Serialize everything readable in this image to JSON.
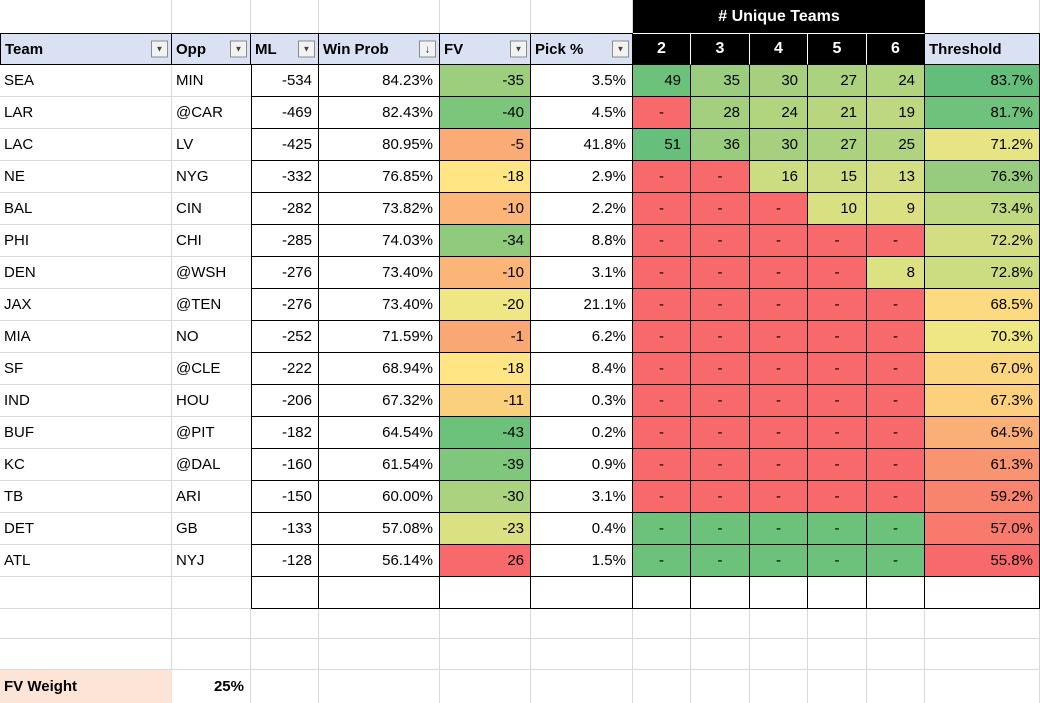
{
  "header": {
    "unique_teams_label": "# Unique Teams",
    "columns": [
      {
        "label": "Team",
        "icon": "filter-icon"
      },
      {
        "label": "Opp",
        "icon": "filter-icon"
      },
      {
        "label": "ML",
        "icon": "filter-icon"
      },
      {
        "label": "Win Prob",
        "icon": "filter-sort-desc-icon"
      },
      {
        "label": "FV",
        "icon": "filter-icon"
      },
      {
        "label": "Pick %",
        "icon": "filter-icon"
      }
    ],
    "unique_columns": [
      "2",
      "3",
      "4",
      "5",
      "6"
    ],
    "threshold_label": "Threshold"
  },
  "icons": {
    "filter_glyph": "▼",
    "sort_desc_glyph": "↓"
  },
  "rows": [
    {
      "team": "SEA",
      "opp": "MIN",
      "ml": "-534",
      "win_prob": "84.23%",
      "fv": "-35",
      "fv_color": "#9CCE7D",
      "pick_pct": "3.5%",
      "unique": [
        {
          "value": "49",
          "color": "#6CC17B"
        },
        {
          "value": "35",
          "color": "#9BCD7E"
        },
        {
          "value": "30",
          "color": "#A6D07E"
        },
        {
          "value": "27",
          "color": "#ABD27F"
        },
        {
          "value": "24",
          "color": "#B1D47F"
        }
      ],
      "threshold": "83.7%",
      "threshold_color": "#63BE7B"
    },
    {
      "team": "LAR",
      "opp": "@CAR",
      "ml": "-469",
      "win_prob": "82.43%",
      "fv": "-40",
      "fv_color": "#7CC67C",
      "pick_pct": "4.5%",
      "unique": [
        {
          "value": "-",
          "color": "#F8696B"
        },
        {
          "value": "28",
          "color": "#A3CF7E"
        },
        {
          "value": "24",
          "color": "#B1D47F"
        },
        {
          "value": "21",
          "color": "#B9D67F"
        },
        {
          "value": "19",
          "color": "#BDD880"
        }
      ],
      "threshold": "81.7%",
      "threshold_color": "#6FC27B"
    },
    {
      "team": "LAC",
      "opp": "LV",
      "ml": "-425",
      "win_prob": "80.95%",
      "fv": "-5",
      "fv_color": "#FAAB76",
      "pick_pct": "41.8%",
      "unique": [
        {
          "value": "51",
          "color": "#66BF7B"
        },
        {
          "value": "36",
          "color": "#99CD7E"
        },
        {
          "value": "30",
          "color": "#A6D07E"
        },
        {
          "value": "27",
          "color": "#ABD27F"
        },
        {
          "value": "25",
          "color": "#AFD37F"
        }
      ],
      "threshold": "71.2%",
      "threshold_color": "#E7E583"
    },
    {
      "team": "NE",
      "opp": "NYG",
      "ml": "-332",
      "win_prob": "76.85%",
      "fv": "-18",
      "fv_color": "#FFE583",
      "pick_pct": "2.9%",
      "unique": [
        {
          "value": "-",
          "color": "#F8696B"
        },
        {
          "value": "-",
          "color": "#F8696B"
        },
        {
          "value": "16",
          "color": "#CBDC81"
        },
        {
          "value": "15",
          "color": "#CEDD81"
        },
        {
          "value": "13",
          "color": "#D3DF82"
        }
      ],
      "threshold": "76.3%",
      "threshold_color": "#97CC7E"
    },
    {
      "team": "BAL",
      "opp": "CIN",
      "ml": "-282",
      "win_prob": "73.82%",
      "fv": "-10",
      "fv_color": "#FBB578",
      "pick_pct": "2.2%",
      "unique": [
        {
          "value": "-",
          "color": "#F8696B"
        },
        {
          "value": "-",
          "color": "#F8696B"
        },
        {
          "value": "-",
          "color": "#F8696B"
        },
        {
          "value": "10",
          "color": "#D9E082"
        },
        {
          "value": "9",
          "color": "#DBE182"
        }
      ],
      "threshold": "73.4%",
      "threshold_color": "#BFD980"
    },
    {
      "team": "PHI",
      "opp": "CHI",
      "ml": "-285",
      "win_prob": "74.03%",
      "fv": "-34",
      "fv_color": "#90CA7D",
      "pick_pct": "8.8%",
      "unique": [
        {
          "value": "-",
          "color": "#F8696B"
        },
        {
          "value": "-",
          "color": "#F8696B"
        },
        {
          "value": "-",
          "color": "#F8696B"
        },
        {
          "value": "-",
          "color": "#F8696B"
        },
        {
          "value": "-",
          "color": "#F8696B"
        }
      ],
      "threshold": "72.2%",
      "threshold_color": "#D2DE81"
    },
    {
      "team": "DEN",
      "opp": "@WSH",
      "ml": "-276",
      "win_prob": "73.40%",
      "fv": "-10",
      "fv_color": "#FBB578",
      "pick_pct": "3.1%",
      "unique": [
        {
          "value": "-",
          "color": "#F8696B"
        },
        {
          "value": "-",
          "color": "#F8696B"
        },
        {
          "value": "-",
          "color": "#F8696B"
        },
        {
          "value": "-",
          "color": "#F8696B"
        },
        {
          "value": "8",
          "color": "#DCE182"
        }
      ],
      "threshold": "72.8%",
      "threshold_color": "#CCDC81"
    },
    {
      "team": "JAX",
      "opp": "@TEN",
      "ml": "-276",
      "win_prob": "73.40%",
      "fv": "-20",
      "fv_color": "#EFE783",
      "pick_pct": "21.1%",
      "unique": [
        {
          "value": "-",
          "color": "#F8696B"
        },
        {
          "value": "-",
          "color": "#F8696B"
        },
        {
          "value": "-",
          "color": "#F8696B"
        },
        {
          "value": "-",
          "color": "#F8696B"
        },
        {
          "value": "-",
          "color": "#F8696B"
        }
      ],
      "threshold": "68.5%",
      "threshold_color": "#FCDA7F"
    },
    {
      "team": "MIA",
      "opp": "NO",
      "ml": "-252",
      "win_prob": "71.59%",
      "fv": "-1",
      "fv_color": "#F9A874",
      "pick_pct": "6.2%",
      "unique": [
        {
          "value": "-",
          "color": "#F8696B"
        },
        {
          "value": "-",
          "color": "#F8696B"
        },
        {
          "value": "-",
          "color": "#F8696B"
        },
        {
          "value": "-",
          "color": "#F8696B"
        },
        {
          "value": "-",
          "color": "#F8696B"
        }
      ],
      "threshold": "70.3%",
      "threshold_color": "#EEE783"
    },
    {
      "team": "SF",
      "opp": "@CLE",
      "ml": "-222",
      "win_prob": "68.94%",
      "fv": "-18",
      "fv_color": "#FFE583",
      "pick_pct": "8.4%",
      "unique": [
        {
          "value": "-",
          "color": "#F8696B"
        },
        {
          "value": "-",
          "color": "#F8696B"
        },
        {
          "value": "-",
          "color": "#F8696B"
        },
        {
          "value": "-",
          "color": "#F8696B"
        },
        {
          "value": "-",
          "color": "#F8696B"
        }
      ],
      "threshold": "67.0%",
      "threshold_color": "#FCD67E"
    },
    {
      "team": "IND",
      "opp": "HOU",
      "ml": "-206",
      "win_prob": "67.32%",
      "fv": "-11",
      "fv_color": "#FBD07D",
      "pick_pct": "0.3%",
      "unique": [
        {
          "value": "-",
          "color": "#F8696B"
        },
        {
          "value": "-",
          "color": "#F8696B"
        },
        {
          "value": "-",
          "color": "#F8696B"
        },
        {
          "value": "-",
          "color": "#F8696B"
        },
        {
          "value": "-",
          "color": "#F8696B"
        }
      ],
      "threshold": "67.3%",
      "threshold_color": "#FCD07D"
    },
    {
      "team": "BUF",
      "opp": "@PIT",
      "ml": "-182",
      "win_prob": "64.54%",
      "fv": "-43",
      "fv_color": "#6CC17B",
      "pick_pct": "0.2%",
      "unique": [
        {
          "value": "-",
          "color": "#F8696B"
        },
        {
          "value": "-",
          "color": "#F8696B"
        },
        {
          "value": "-",
          "color": "#F8696B"
        },
        {
          "value": "-",
          "color": "#F8696B"
        },
        {
          "value": "-",
          "color": "#F8696B"
        }
      ],
      "threshold": "64.5%",
      "threshold_color": "#FAAF77"
    },
    {
      "team": "KC",
      "opp": "@DAL",
      "ml": "-160",
      "win_prob": "61.54%",
      "fv": "-39",
      "fv_color": "#7FC77C",
      "pick_pct": "0.9%",
      "unique": [
        {
          "value": "-",
          "color": "#F8696B"
        },
        {
          "value": "-",
          "color": "#F8696B"
        },
        {
          "value": "-",
          "color": "#F8696B"
        },
        {
          "value": "-",
          "color": "#F8696B"
        },
        {
          "value": "-",
          "color": "#F8696B"
        }
      ],
      "threshold": "61.3%",
      "threshold_color": "#F99471"
    },
    {
      "team": "TB",
      "opp": "ARI",
      "ml": "-150",
      "win_prob": "60.00%",
      "fv": "-30",
      "fv_color": "#ABD27F",
      "pick_pct": "3.1%",
      "unique": [
        {
          "value": "-",
          "color": "#F8696B"
        },
        {
          "value": "-",
          "color": "#F8696B"
        },
        {
          "value": "-",
          "color": "#F8696B"
        },
        {
          "value": "-",
          "color": "#F8696B"
        },
        {
          "value": "-",
          "color": "#F8696B"
        }
      ],
      "threshold": "59.2%",
      "threshold_color": "#F8846E"
    },
    {
      "team": "DET",
      "opp": "GB",
      "ml": "-133",
      "win_prob": "57.08%",
      "fv": "-23",
      "fv_color": "#D9E182",
      "pick_pct": "0.4%",
      "unique": [
        {
          "value": "-",
          "color": "#6CC17B"
        },
        {
          "value": "-",
          "color": "#6CC17B"
        },
        {
          "value": "-",
          "color": "#6CC17B"
        },
        {
          "value": "-",
          "color": "#6CC17B"
        },
        {
          "value": "-",
          "color": "#6CC17B"
        }
      ],
      "threshold": "57.0%",
      "threshold_color": "#F87A6C"
    },
    {
      "team": "ATL",
      "opp": "NYJ",
      "ml": "-128",
      "win_prob": "56.14%",
      "fv": "26",
      "fv_color": "#F8696B",
      "pick_pct": "1.5%",
      "unique": [
        {
          "value": "-",
          "color": "#6CC17B"
        },
        {
          "value": "-",
          "color": "#6CC17B"
        },
        {
          "value": "-",
          "color": "#6CC17B"
        },
        {
          "value": "-",
          "color": "#6CC17B"
        },
        {
          "value": "-",
          "color": "#6CC17B"
        }
      ],
      "threshold": "55.8%",
      "threshold_color": "#F8696B"
    }
  ],
  "footer": {
    "fv_weight_label": "FV Weight",
    "fv_weight_value": "25%"
  },
  "colors": {
    "header_bg": "#D9E1F2",
    "unique_banner_bg": "#000000",
    "negative_cell_red": "#F8696B",
    "positive_cell_green": "#63BE7B",
    "footer_label_bg": "#FCE4D6",
    "gridline": "#D9D9D9"
  }
}
